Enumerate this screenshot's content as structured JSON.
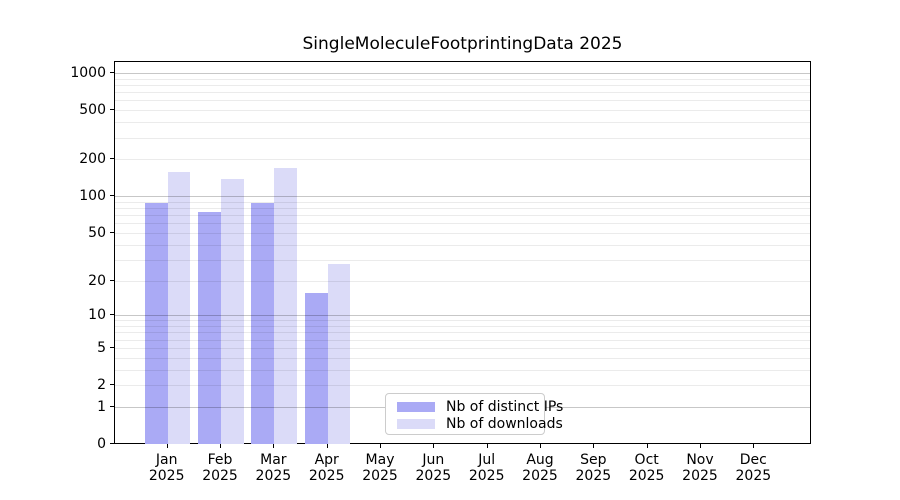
{
  "title": "SingleMoleculeFootprintingData 2025",
  "chart_data": {
    "type": "bar",
    "title": "SingleMoleculeFootprintingData 2025",
    "categories": [
      "Jan",
      "Feb",
      "Mar",
      "Apr",
      "May",
      "Jun",
      "Jul",
      "Aug",
      "Sep",
      "Oct",
      "Nov",
      "Dec"
    ],
    "year_label": "2025",
    "series": [
      {
        "name": "Nb of distinct IPs",
        "color": "#aaaaf5",
        "values": [
          90,
          76,
          90,
          16,
          null,
          null,
          null,
          null,
          null,
          null,
          null,
          null
        ]
      },
      {
        "name": "Nb of downloads",
        "color": "#dbdbf8",
        "values": [
          160,
          140,
          173,
          28,
          null,
          null,
          null,
          null,
          null,
          null,
          null,
          null
        ]
      }
    ],
    "y_axis": {
      "scale": "log1p",
      "ticks": [
        0,
        1,
        2,
        5,
        10,
        20,
        50,
        100,
        200,
        500,
        1000
      ],
      "tick_labels": [
        "0",
        "1",
        "2",
        "5",
        "10",
        "20",
        "50",
        "100",
        "200",
        "500",
        "1000"
      ],
      "range": [
        0,
        1250
      ],
      "major_grid_values": [
        1,
        10,
        100,
        1000
      ]
    },
    "x_axis": {
      "tick_label_line2": "2025"
    },
    "grid": "on",
    "legend_position": "bottom-center",
    "colors": {
      "major_grid": "rgba(0,0,0,0.22)",
      "minor_grid": "rgba(0,0,0,0.08)",
      "axis": "#000000",
      "background": "#ffffff"
    }
  }
}
